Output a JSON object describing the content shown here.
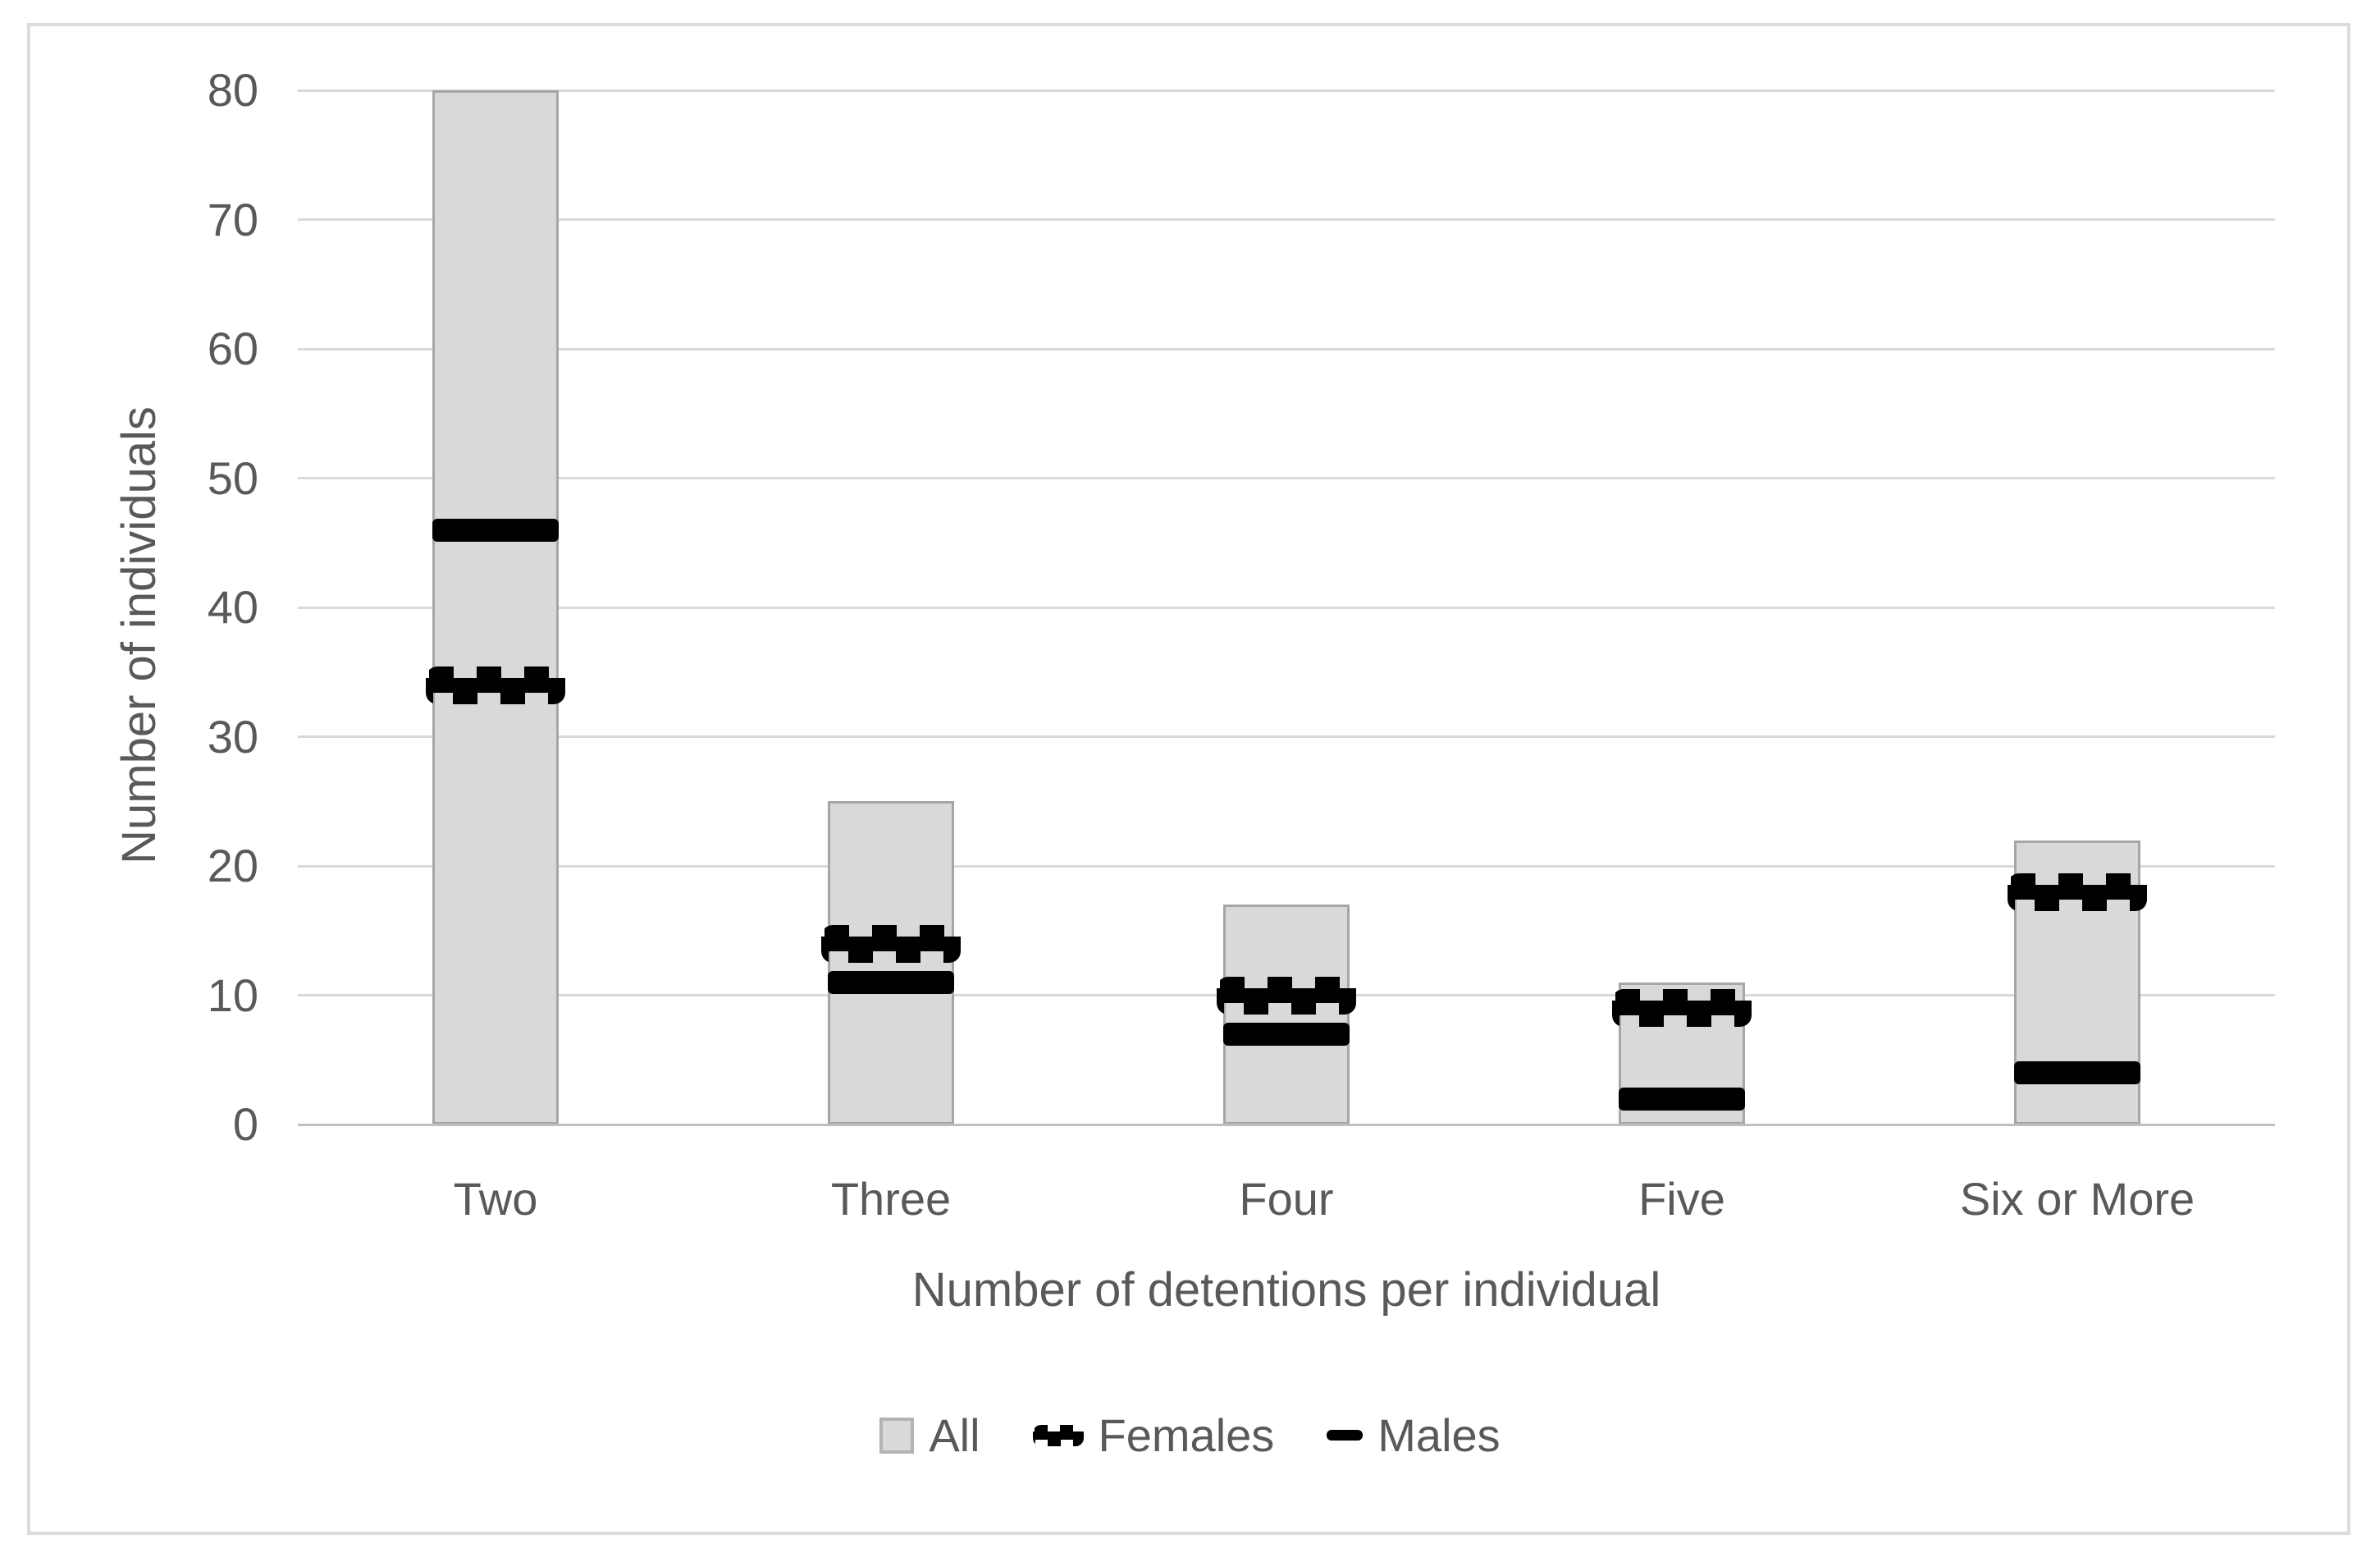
{
  "chart_data": {
    "type": "bar",
    "title": "",
    "categories": [
      "Two",
      "Three",
      "Four",
      "Five",
      "Six or More"
    ],
    "series": [
      {
        "name": "All",
        "role": "bar",
        "fill": "#d9d9d9",
        "border": "#a6a6a6",
        "values": [
          80,
          25,
          17,
          11,
          22
        ]
      },
      {
        "name": "Females",
        "role": "dashed-marker",
        "color": "#000000",
        "values": [
          34,
          14,
          10,
          9,
          18
        ]
      },
      {
        "name": "Males",
        "role": "solid-marker",
        "color": "#000000",
        "values": [
          46,
          11,
          7,
          2,
          4
        ]
      }
    ],
    "xlabel": "Number of detentions per individual",
    "ylabel": "Number of individuals",
    "ylim": [
      0,
      80
    ],
    "yticks": [
      0,
      10,
      20,
      30,
      40,
      50,
      60,
      70,
      80
    ],
    "grid": "horizontal",
    "grid_color": "#d9d9d9",
    "axis_line_color": "#bfbfbf",
    "text_color": "#595959",
    "legend_position": "bottom"
  }
}
